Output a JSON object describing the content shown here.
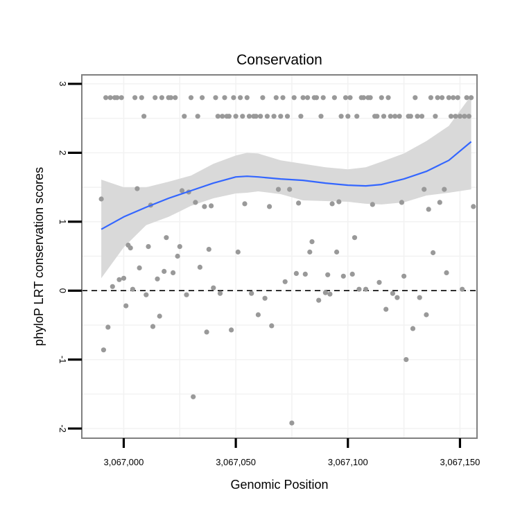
{
  "chart_data": {
    "type": "scatter",
    "title": "Conservation",
    "xlabel": "Genomic Position",
    "ylabel": "phyloP LRT conservation scores",
    "xlim": [
      3066981.3,
      3067157.6
    ],
    "ylim": [
      -2.14,
      3.13
    ],
    "x_ticks": [
      3067000,
      3067050,
      3067100,
      3067150
    ],
    "x_tick_labels": [
      "3,067,000",
      "3,067,050",
      "3,067,100",
      "3,067,150"
    ],
    "y_ticks": [
      -2,
      -1,
      0,
      1,
      2,
      3
    ],
    "y_tick_labels": [
      "-2",
      "-1",
      "0",
      "1",
      "2",
      "3"
    ],
    "reference_line": {
      "y": 0,
      "style": "dashed"
    },
    "colors": {
      "points": "#999999",
      "smooth_line": "#3366FF",
      "confidence_band": "#D9D9D9",
      "grid": "#F2F2F2",
      "border": "#7F7F7F"
    },
    "points": [
      [
        3066990,
        1.33
      ],
      [
        3066991,
        -0.86
      ],
      [
        3066992,
        2.8
      ],
      [
        3066993,
        -0.53
      ],
      [
        3066994,
        2.8
      ],
      [
        3066995,
        0.06
      ],
      [
        3066996,
        2.8
      ],
      [
        3066997,
        2.8
      ],
      [
        3066998,
        0.16
      ],
      [
        3066999,
        2.8
      ],
      [
        3067000,
        0.18
      ],
      [
        3067001,
        -0.22
      ],
      [
        3067002,
        0.66
      ],
      [
        3067003,
        0.62
      ],
      [
        3067004,
        0.02
      ],
      [
        3067005,
        2.8
      ],
      [
        3067006,
        1.48
      ],
      [
        3067007,
        0.33
      ],
      [
        3067008,
        2.8
      ],
      [
        3067009,
        2.53
      ],
      [
        3067010,
        -0.06
      ],
      [
        3067011,
        0.64
      ],
      [
        3067012,
        1.24
      ],
      [
        3067013,
        -0.52
      ],
      [
        3067014,
        2.8
      ],
      [
        3067015,
        0.17
      ],
      [
        3067016,
        -0.37
      ],
      [
        3067017,
        2.8
      ],
      [
        3067018,
        0.28
      ],
      [
        3067019,
        0.77
      ],
      [
        3067020,
        2.8
      ],
      [
        3067021,
        2.8
      ],
      [
        3067022,
        0.26
      ],
      [
        3067023,
        2.8
      ],
      [
        3067024,
        0.5
      ],
      [
        3067025,
        0.64
      ],
      [
        3067026,
        1.45
      ],
      [
        3067027,
        2.53
      ],
      [
        3067028,
        -0.06
      ],
      [
        3067029,
        1.43
      ],
      [
        3067030,
        2.8
      ],
      [
        3067031,
        -1.54
      ],
      [
        3067032,
        1.28
      ],
      [
        3067033,
        2.53
      ],
      [
        3067034,
        0.34
      ],
      [
        3067035,
        2.8
      ],
      [
        3067036,
        1.22
      ],
      [
        3067037,
        -0.6
      ],
      [
        3067038,
        0.6
      ],
      [
        3067039,
        1.23
      ],
      [
        3067040,
        0.04
      ],
      [
        3067041,
        2.8
      ],
      [
        3067042,
        2.53
      ],
      [
        3067043,
        -0.04
      ],
      [
        3067044,
        2.53
      ],
      [
        3067045,
        2.8
      ],
      [
        3067046,
        2.53
      ],
      [
        3067047,
        2.53
      ],
      [
        3067048,
        -0.57
      ],
      [
        3067049,
        2.8
      ],
      [
        3067050,
        2.53
      ],
      [
        3067051,
        0.56
      ],
      [
        3067052,
        2.8
      ],
      [
        3067053,
        2.53
      ],
      [
        3067054,
        1.26
      ],
      [
        3067055,
        2.8
      ],
      [
        3067056,
        2.53
      ],
      [
        3067057,
        -0.04
      ],
      [
        3067058,
        2.53
      ],
      [
        3067059,
        2.53
      ],
      [
        3067060,
        -0.35
      ],
      [
        3067061,
        2.53
      ],
      [
        3067062,
        2.8
      ],
      [
        3067063,
        -0.11
      ],
      [
        3067064,
        2.53
      ],
      [
        3067065,
        1.22
      ],
      [
        3067066,
        -0.51
      ],
      [
        3067067,
        2.53
      ],
      [
        3067068,
        2.8
      ],
      [
        3067069,
        1.47
      ],
      [
        3067070,
        2.53
      ],
      [
        3067071,
        2.8
      ],
      [
        3067072,
        0.13
      ],
      [
        3067073,
        2.53
      ],
      [
        3067074,
        1.47
      ],
      [
        3067075,
        -1.92
      ],
      [
        3067076,
        2.8
      ],
      [
        3067077,
        0.25
      ],
      [
        3067078,
        1.27
      ],
      [
        3067079,
        2.53
      ],
      [
        3067080,
        2.8
      ],
      [
        3067081,
        0.24
      ],
      [
        3067082,
        2.8
      ],
      [
        3067083,
        0.56
      ],
      [
        3067084,
        0.71
      ],
      [
        3067085,
        2.8
      ],
      [
        3067086,
        2.8
      ],
      [
        3067087,
        -0.14
      ],
      [
        3067088,
        2.53
      ],
      [
        3067089,
        2.8
      ],
      [
        3067090,
        -0.03
      ],
      [
        3067091,
        0.23
      ],
      [
        3067092,
        -0.05
      ],
      [
        3067093,
        1.26
      ],
      [
        3067094,
        2.8
      ],
      [
        3067095,
        0.56
      ],
      [
        3067096,
        1.29
      ],
      [
        3067097,
        2.53
      ],
      [
        3067098,
        0.21
      ],
      [
        3067099,
        2.8
      ],
      [
        3067100,
        2.53
      ],
      [
        3067101,
        2.8
      ],
      [
        3067102,
        0.24
      ],
      [
        3067103,
        0.77
      ],
      [
        3067104,
        2.53
      ],
      [
        3067105,
        0.02
      ],
      [
        3067106,
        2.8
      ],
      [
        3067107,
        2.8
      ],
      [
        3067108,
        0.02
      ],
      [
        3067109,
        2.8
      ],
      [
        3067110,
        2.8
      ],
      [
        3067111,
        1.25
      ],
      [
        3067112,
        2.53
      ],
      [
        3067113,
        2.53
      ],
      [
        3067114,
        0.12
      ],
      [
        3067115,
        2.8
      ],
      [
        3067116,
        2.53
      ],
      [
        3067117,
        -0.27
      ],
      [
        3067118,
        2.8
      ],
      [
        3067119,
        2.53
      ],
      [
        3067120,
        -0.04
      ],
      [
        3067121,
        2.53
      ],
      [
        3067122,
        -0.1
      ],
      [
        3067123,
        2.53
      ],
      [
        3067124,
        1.28
      ],
      [
        3067125,
        0.21
      ],
      [
        3067126,
        -1.0
      ],
      [
        3067127,
        2.53
      ],
      [
        3067128,
        2.53
      ],
      [
        3067129,
        -0.55
      ],
      [
        3067130,
        2.8
      ],
      [
        3067131,
        2.53
      ],
      [
        3067132,
        -0.1
      ],
      [
        3067133,
        2.53
      ],
      [
        3067134,
        1.47
      ],
      [
        3067135,
        -0.35
      ],
      [
        3067136,
        1.18
      ],
      [
        3067137,
        2.8
      ],
      [
        3067138,
        0.55
      ],
      [
        3067139,
        2.53
      ],
      [
        3067140,
        2.8
      ],
      [
        3067141,
        1.28
      ],
      [
        3067142,
        2.8
      ],
      [
        3067143,
        1.47
      ],
      [
        3067144,
        0.26
      ],
      [
        3067145,
        2.8
      ],
      [
        3067146,
        2.53
      ],
      [
        3067147,
        2.8
      ],
      [
        3067148,
        2.53
      ],
      [
        3067149,
        2.8
      ],
      [
        3067150,
        2.53
      ],
      [
        3067151,
        0.02
      ],
      [
        3067152,
        2.53
      ],
      [
        3067153,
        2.8
      ],
      [
        3067154,
        2.53
      ],
      [
        3067155,
        2.8
      ],
      [
        3067156,
        1.22
      ]
    ],
    "smooth": {
      "x": [
        3066990,
        3067000,
        3067010,
        3067020,
        3067030,
        3067040,
        3067050,
        3067055,
        3067060,
        3067070,
        3067080,
        3067090,
        3067100,
        3067108,
        3067115,
        3067125,
        3067135,
        3067145,
        3067155
      ],
      "fit": [
        0.89,
        1.07,
        1.21,
        1.34,
        1.45,
        1.56,
        1.65,
        1.66,
        1.65,
        1.62,
        1.6,
        1.56,
        1.53,
        1.52,
        1.54,
        1.62,
        1.73,
        1.89,
        2.16
      ],
      "lower": [
        0.18,
        0.63,
        0.95,
        1.07,
        1.23,
        1.34,
        1.41,
        1.42,
        1.44,
        1.4,
        1.31,
        1.3,
        1.29,
        1.26,
        1.25,
        1.28,
        1.38,
        1.42,
        1.47
      ],
      "upper": [
        1.61,
        1.5,
        1.5,
        1.58,
        1.67,
        1.84,
        1.96,
        2.0,
        1.99,
        1.89,
        1.84,
        1.79,
        1.76,
        1.79,
        1.87,
        1.99,
        2.17,
        2.39,
        2.83
      ]
    }
  }
}
